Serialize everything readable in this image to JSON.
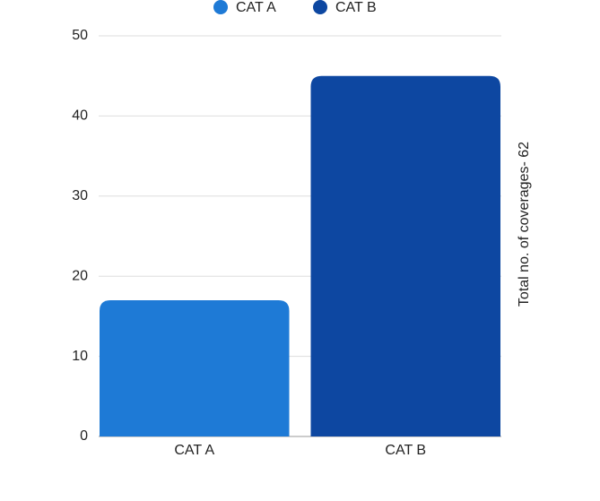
{
  "chart_data": {
    "type": "bar",
    "categories": [
      "CAT A",
      "CAT B"
    ],
    "values": [
      17,
      45
    ],
    "colors": [
      "#1e7ad6",
      "#0d47a1"
    ],
    "annotation": "Total no. of coverages- 62",
    "ylim": [
      0,
      50
    ],
    "yticks": [
      0,
      10,
      20,
      30,
      40,
      50
    ],
    "grid": true,
    "legend": "top"
  }
}
